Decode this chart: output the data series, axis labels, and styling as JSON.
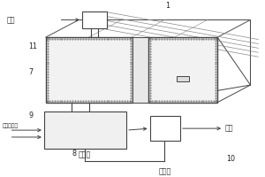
{
  "bg_color": "#ffffff",
  "lc": "#444444",
  "fs": 5.8,
  "labels": {
    "gufei": "固废",
    "jiajirong": "添加剂溶液",
    "fanyingshui": "反应水",
    "nongsuoye": "浓缩液",
    "chanpin": "产品",
    "n1": "1",
    "n7": "7",
    "n8": "8",
    "n9": "9",
    "n10": "10",
    "n11": "11"
  }
}
